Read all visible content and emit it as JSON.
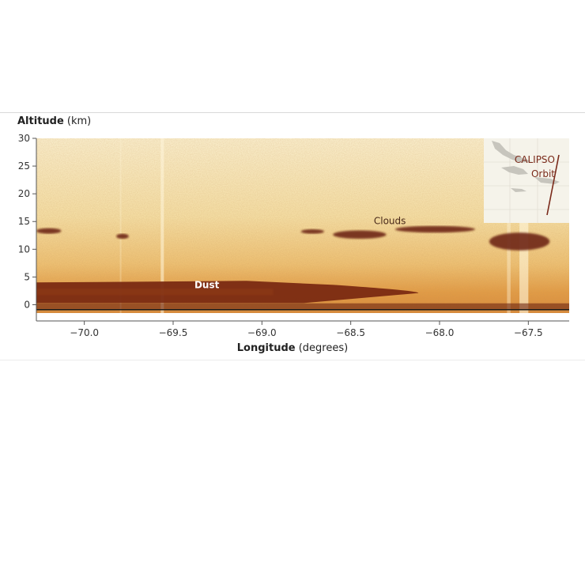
{
  "chart_data": {
    "type": "heatmap",
    "ylabel": {
      "name": "Altitude",
      "unit": "(km)"
    },
    "xlabel": {
      "name": "Longitude",
      "unit": "(degrees)"
    },
    "xlim": [
      -70.27,
      -67.27
    ],
    "ylim": [
      -1.5,
      30
    ],
    "xticks": [
      -70.0,
      -69.5,
      -69.0,
      -68.5,
      -68.0,
      -67.5
    ],
    "xtick_labels": [
      "−70.0",
      "−69.5",
      "−69.0",
      "−68.5",
      "−68.0",
      "−67.5"
    ],
    "yticks": [
      0,
      5,
      10,
      15,
      20,
      25,
      30
    ],
    "ytick_labels": [
      "0",
      "5",
      "10",
      "15",
      "20",
      "25",
      "30"
    ],
    "annotations": [
      {
        "text": "Dust",
        "x": -69.38,
        "y": 3.0
      },
      {
        "text": "Clouds",
        "x": -68.37,
        "y": 14.5
      }
    ],
    "features": [
      {
        "name": "dust_layer",
        "x_range": [
          -70.27,
          -68.12
        ],
        "alt_range": [
          0.3,
          4.3
        ]
      },
      {
        "name": "cloud",
        "x_range": [
          -70.27,
          -70.13
        ],
        "alt_range": [
          12.8,
          13.8
        ]
      },
      {
        "name": "cloud",
        "x_range": [
          -69.82,
          -69.75
        ],
        "alt_range": [
          11.9,
          12.8
        ]
      },
      {
        "name": "cloud",
        "x_range": [
          -68.78,
          -68.65
        ],
        "alt_range": [
          12.8,
          13.6
        ]
      },
      {
        "name": "cloud",
        "x_range": [
          -68.6,
          -68.3
        ],
        "alt_range": [
          11.9,
          13.4
        ]
      },
      {
        "name": "cloud",
        "x_range": [
          -68.25,
          -67.8
        ],
        "alt_range": [
          13.0,
          14.2
        ]
      },
      {
        "name": "cloud",
        "x_range": [
          -67.72,
          -67.38
        ],
        "alt_range": [
          9.8,
          13.0
        ]
      }
    ],
    "inset": {
      "labels": [
        "CALIPSO",
        "Orbit"
      ],
      "position": "top-right"
    },
    "colors": {
      "background": "#f7e7b8",
      "signal_mid": "#eaa64a",
      "dense": "#7a2a12",
      "cloud": "#6e2612",
      "annotation_dark": "#4a2a1a",
      "inset_text": "#7a2a1a"
    }
  }
}
